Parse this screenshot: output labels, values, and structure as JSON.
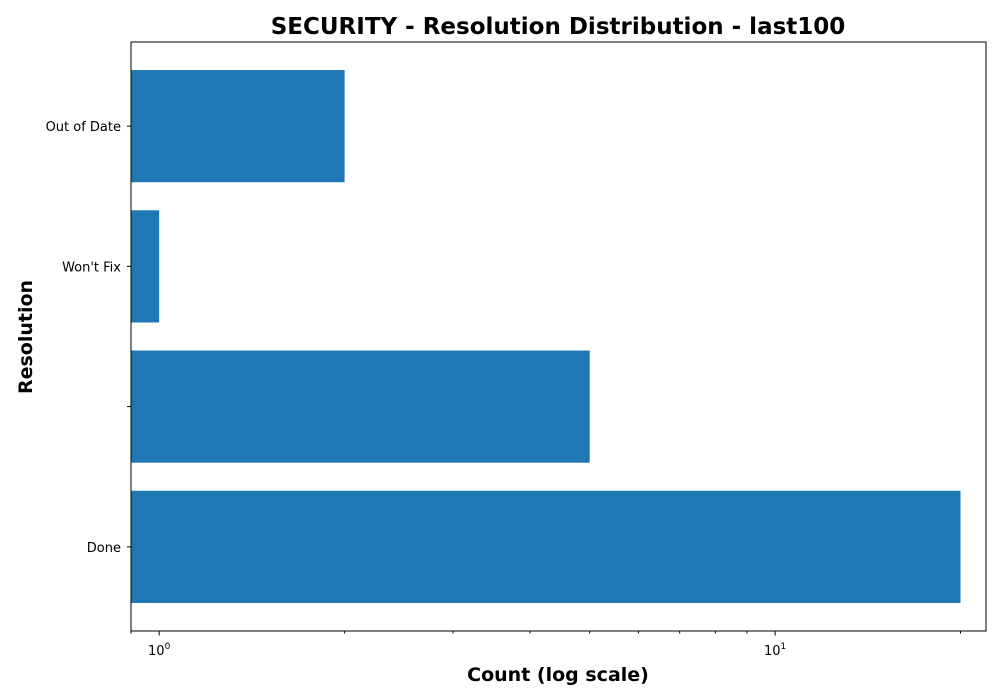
{
  "chart_data": {
    "type": "bar",
    "orientation": "horizontal",
    "title": "SECURITY - Resolution Distribution - last100",
    "xlabel": "Count (log scale)",
    "ylabel": "Resolution",
    "x_scale": "log",
    "xlim": [
      0.9,
      22
    ],
    "categories": [
      "Done",
      "",
      "Won't Fix",
      "Out of Date"
    ],
    "values": [
      20,
      5,
      1,
      2
    ],
    "x_ticks": [
      {
        "value": 1,
        "base": "10",
        "exp": "0"
      },
      {
        "value": 10,
        "base": "10",
        "exp": "1"
      }
    ],
    "bar_color": "#1f77b4",
    "grid": false,
    "legend": "none"
  }
}
